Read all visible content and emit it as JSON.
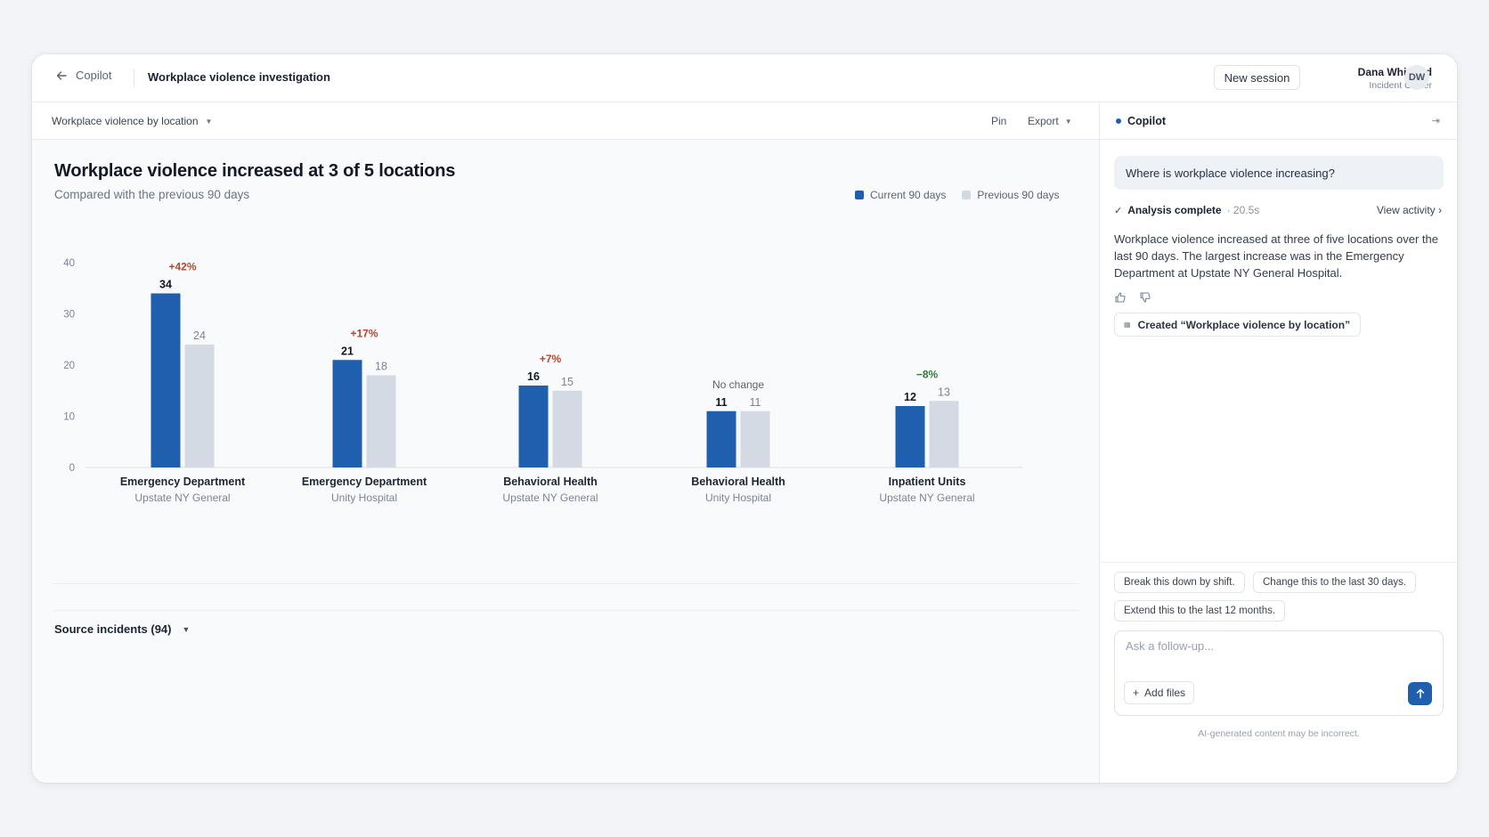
{
  "header": {
    "back_label": "Copilot",
    "session_title": "Workplace violence investigation",
    "new_session_label": "New session",
    "user_name": "Dana Whitfield",
    "user_role": "Incident Owner",
    "user_initials": "DW"
  },
  "toolbar": {
    "view_label": "Workplace violence by location",
    "pin_label": "Pin",
    "export_label": "Export"
  },
  "chart": {
    "title": "Workplace violence increased at 3 of 5 locations",
    "subtitle": "Compared with the previous 90 days",
    "legend_current": "Current 90 days",
    "legend_previous": "Previous 90 days"
  },
  "chart_data": {
    "type": "bar",
    "title": "Workplace violence increased at 3 of 5 locations",
    "subtitle": "Compared with the previous 90 days",
    "categories": [
      "Emergency Department",
      "Emergency Department",
      "Behavioral Health",
      "Behavioral Health",
      "Inpatient Units"
    ],
    "category_sublabels": [
      "Upstate NY General",
      "Unity Hospital",
      "Upstate NY General",
      "Unity Hospital",
      "Upstate NY General"
    ],
    "series": [
      {
        "name": "Current 90 days",
        "values": [
          34,
          21,
          16,
          11,
          12
        ],
        "color": "#1f5fae"
      },
      {
        "name": "Previous 90 days",
        "values": [
          24,
          18,
          15,
          11,
          13
        ],
        "color": "#d3dae4"
      }
    ],
    "annotations": [
      "+42%",
      "+17%",
      "+7%",
      "No change",
      "−8%"
    ],
    "annotation_colors": [
      "#b5462b",
      "#b5462b",
      "#b5462b",
      "#5b6472",
      "#2f7a3b"
    ],
    "yticks": [
      0,
      10,
      20,
      30,
      40
    ],
    "ylim": [
      0,
      40
    ],
    "grid": false,
    "legend": "top-right",
    "xlabel": "",
    "ylabel": ""
  },
  "source": {
    "label": "Source incidents (94)"
  },
  "copilot": {
    "panel_title": "Copilot",
    "collapse_glyph": "⇥",
    "question": "Where is workplace violence increasing?",
    "status_label": "Analysis complete",
    "status_duration": "· 20.5s",
    "view_activity": "View activity ›",
    "answer": "Workplace violence increased at three of five locations over the last 90 days. The largest increase was in the Emergency Department at Upstate NY General Hospital.",
    "created_label": "Created “Workplace violence by location”",
    "suggestions": [
      "Break this down by shift.",
      "Change this to the last 30 days.",
      "Extend this to the last 12 months."
    ],
    "input_placeholder": "Ask a follow-up...",
    "add_files_label": "Add files",
    "disclaimer": "AI-generated content may be incorrect."
  },
  "colors": {
    "accent": "#1f5fae",
    "previous": "#d3dae4",
    "increase": "#b5462b",
    "decrease": "#2f7a3b"
  }
}
